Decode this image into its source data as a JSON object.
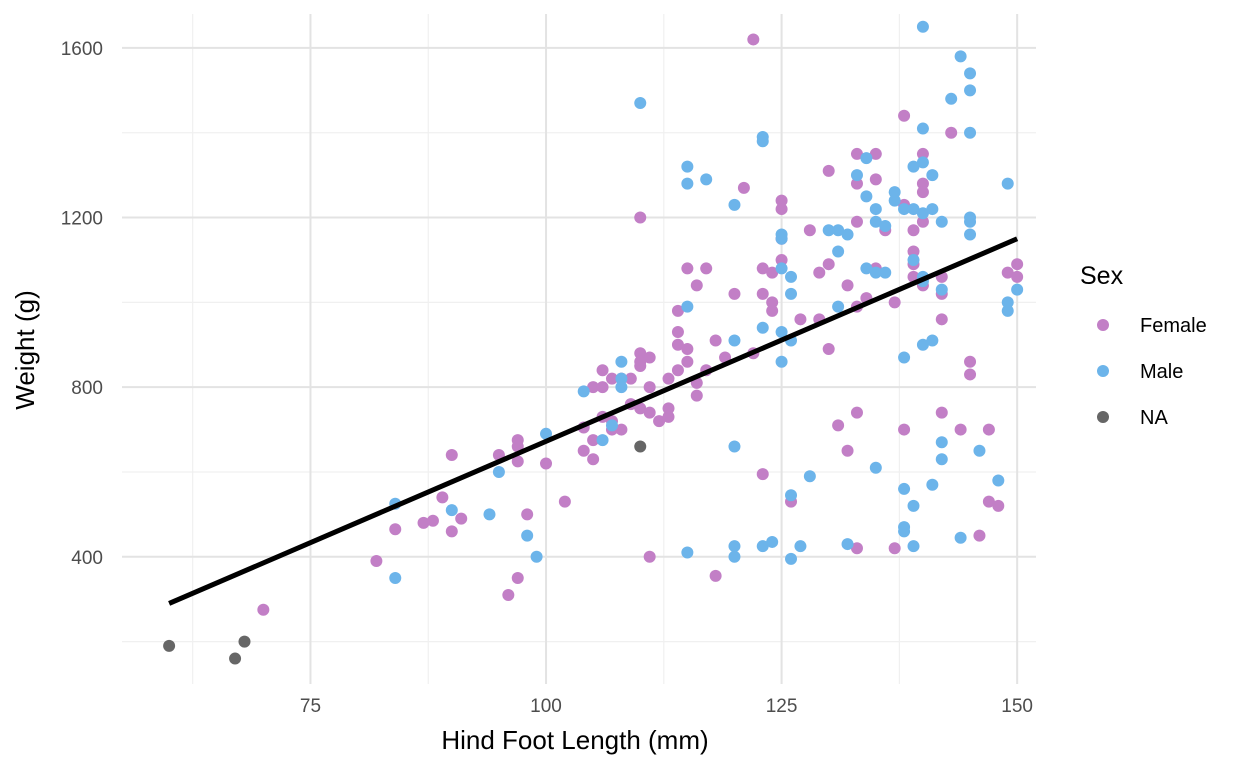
{
  "chart_data": {
    "type": "scatter",
    "title": "",
    "xlabel": "Hind Foot Length (mm)",
    "ylabel": "Weight (g)",
    "xlim": [
      55,
      152
    ],
    "ylim": [
      100,
      1680
    ],
    "x_ticks": [
      75,
      100,
      125,
      150
    ],
    "y_ticks": [
      400,
      800,
      1200,
      1600
    ],
    "x_tick_labels": [
      "75",
      "100",
      "125",
      "150"
    ],
    "y_tick_labels": [
      "400",
      "800",
      "1200",
      "1600"
    ],
    "grid": true,
    "legend": {
      "title": "Sex",
      "position": "right",
      "entries": [
        {
          "label": "Female",
          "color": "#c27fc6"
        },
        {
          "label": "Male",
          "color": "#6cb4ea"
        },
        {
          "label": "NA",
          "color": "#666666"
        }
      ]
    },
    "trend_line": {
      "x": [
        60,
        150
      ],
      "y": [
        290,
        1150
      ],
      "color": "#000000"
    },
    "series": [
      {
        "name": "Female",
        "color": "#c27fc6",
        "points": [
          [
            70,
            275
          ],
          [
            82,
            390
          ],
          [
            84,
            465
          ],
          [
            87,
            480
          ],
          [
            88,
            485
          ],
          [
            89,
            540
          ],
          [
            90,
            640
          ],
          [
            90,
            460
          ],
          [
            91,
            490
          ],
          [
            95,
            640
          ],
          [
            96,
            310
          ],
          [
            97,
            625
          ],
          [
            97,
            660
          ],
          [
            97,
            675
          ],
          [
            97,
            350
          ],
          [
            98,
            500
          ],
          [
            100,
            620
          ],
          [
            102,
            530
          ],
          [
            104,
            650
          ],
          [
            104,
            705
          ],
          [
            105,
            630
          ],
          [
            105,
            675
          ],
          [
            105,
            800
          ],
          [
            106,
            840
          ],
          [
            106,
            800
          ],
          [
            106,
            730
          ],
          [
            107,
            820
          ],
          [
            107,
            700
          ],
          [
            107,
            720
          ],
          [
            108,
            700
          ],
          [
            108,
            820
          ],
          [
            109,
            760
          ],
          [
            109,
            820
          ],
          [
            110,
            880
          ],
          [
            110,
            860
          ],
          [
            110,
            850
          ],
          [
            110,
            750
          ],
          [
            110,
            1200
          ],
          [
            111,
            870
          ],
          [
            111,
            800
          ],
          [
            111,
            740
          ],
          [
            111,
            400
          ],
          [
            112,
            720
          ],
          [
            113,
            730
          ],
          [
            113,
            820
          ],
          [
            113,
            750
          ],
          [
            114,
            980
          ],
          [
            114,
            900
          ],
          [
            114,
            840
          ],
          [
            114,
            930
          ],
          [
            115,
            890
          ],
          [
            115,
            860
          ],
          [
            115,
            1080
          ],
          [
            116,
            1040
          ],
          [
            116,
            780
          ],
          [
            116,
            810
          ],
          [
            117,
            1080
          ],
          [
            117,
            840
          ],
          [
            118,
            910
          ],
          [
            118,
            355
          ],
          [
            119,
            870
          ],
          [
            120,
            1020
          ],
          [
            121,
            1270
          ],
          [
            122,
            880
          ],
          [
            122,
            1620
          ],
          [
            123,
            1080
          ],
          [
            123,
            1020
          ],
          [
            123,
            595
          ],
          [
            124,
            1070
          ],
          [
            124,
            1000
          ],
          [
            124,
            980
          ],
          [
            125,
            1240
          ],
          [
            125,
            1220
          ],
          [
            125,
            1100
          ],
          [
            125,
            1150
          ],
          [
            126,
            530
          ],
          [
            127,
            960
          ],
          [
            128,
            1170
          ],
          [
            129,
            1070
          ],
          [
            129,
            960
          ],
          [
            130,
            1310
          ],
          [
            130,
            1090
          ],
          [
            130,
            890
          ],
          [
            131,
            710
          ],
          [
            132,
            650
          ],
          [
            132,
            1040
          ],
          [
            133,
            1190
          ],
          [
            133,
            1350
          ],
          [
            133,
            1280
          ],
          [
            133,
            990
          ],
          [
            133,
            740
          ],
          [
            133,
            420
          ],
          [
            134,
            1010
          ],
          [
            135,
            1350
          ],
          [
            135,
            1290
          ],
          [
            135,
            1080
          ],
          [
            136,
            1170
          ],
          [
            137,
            1000
          ],
          [
            137,
            420
          ],
          [
            138,
            1440
          ],
          [
            138,
            1230
          ],
          [
            138,
            700
          ],
          [
            139,
            1170
          ],
          [
            139,
            1120
          ],
          [
            139,
            1060
          ],
          [
            139,
            1090
          ],
          [
            140,
            1350
          ],
          [
            140,
            1280
          ],
          [
            140,
            1260
          ],
          [
            140,
            1190
          ],
          [
            140,
            1040
          ],
          [
            142,
            1060
          ],
          [
            142,
            1020
          ],
          [
            142,
            960
          ],
          [
            142,
            740
          ],
          [
            143,
            1400
          ],
          [
            144,
            700
          ],
          [
            145,
            860
          ],
          [
            145,
            830
          ],
          [
            146,
            450
          ],
          [
            147,
            700
          ],
          [
            147,
            530
          ],
          [
            148,
            520
          ],
          [
            149,
            1070
          ],
          [
            150,
            1090
          ],
          [
            150,
            1060
          ]
        ]
      },
      {
        "name": "Male",
        "color": "#6cb4ea",
        "points": [
          [
            84,
            525
          ],
          [
            84,
            350
          ],
          [
            90,
            510
          ],
          [
            94,
            500
          ],
          [
            95,
            600
          ],
          [
            98,
            450
          ],
          [
            99,
            400
          ],
          [
            100,
            690
          ],
          [
            104,
            790
          ],
          [
            106,
            675
          ],
          [
            107,
            710
          ],
          [
            108,
            860
          ],
          [
            108,
            820
          ],
          [
            108,
            800
          ],
          [
            110,
            1470
          ],
          [
            115,
            1320
          ],
          [
            115,
            1280
          ],
          [
            115,
            990
          ],
          [
            115,
            410
          ],
          [
            117,
            1290
          ],
          [
            120,
            1230
          ],
          [
            120,
            910
          ],
          [
            120,
            660
          ],
          [
            120,
            425
          ],
          [
            120,
            400
          ],
          [
            123,
            1390
          ],
          [
            123,
            1380
          ],
          [
            123,
            940
          ],
          [
            123,
            425
          ],
          [
            124,
            435
          ],
          [
            125,
            1160
          ],
          [
            125,
            1150
          ],
          [
            125,
            1080
          ],
          [
            125,
            930
          ],
          [
            125,
            860
          ],
          [
            126,
            1060
          ],
          [
            126,
            1020
          ],
          [
            126,
            910
          ],
          [
            126,
            545
          ],
          [
            126,
            395
          ],
          [
            127,
            425
          ],
          [
            128,
            590
          ],
          [
            130,
            1170
          ],
          [
            131,
            1170
          ],
          [
            131,
            1120
          ],
          [
            131,
            990
          ],
          [
            132,
            1160
          ],
          [
            132,
            430
          ],
          [
            133,
            1300
          ],
          [
            134,
            1340
          ],
          [
            134,
            1250
          ],
          [
            134,
            1080
          ],
          [
            135,
            1220
          ],
          [
            135,
            1190
          ],
          [
            135,
            1070
          ],
          [
            135,
            610
          ],
          [
            136,
            1180
          ],
          [
            136,
            1070
          ],
          [
            137,
            1260
          ],
          [
            137,
            1240
          ],
          [
            138,
            1220
          ],
          [
            138,
            870
          ],
          [
            138,
            560
          ],
          [
            138,
            470
          ],
          [
            138,
            460
          ],
          [
            139,
            1320
          ],
          [
            139,
            1220
          ],
          [
            139,
            1100
          ],
          [
            139,
            520
          ],
          [
            139,
            425
          ],
          [
            140,
            1650
          ],
          [
            140,
            1410
          ],
          [
            140,
            1330
          ],
          [
            140,
            1210
          ],
          [
            140,
            1060
          ],
          [
            140,
            1050
          ],
          [
            140,
            900
          ],
          [
            141,
            1300
          ],
          [
            141,
            1220
          ],
          [
            141,
            910
          ],
          [
            141,
            570
          ],
          [
            142,
            1190
          ],
          [
            142,
            1030
          ],
          [
            142,
            670
          ],
          [
            142,
            630
          ],
          [
            143,
            1480
          ],
          [
            144,
            1580
          ],
          [
            144,
            445
          ],
          [
            145,
            1540
          ],
          [
            145,
            1500
          ],
          [
            145,
            1400
          ],
          [
            145,
            1200
          ],
          [
            145,
            1190
          ],
          [
            145,
            1160
          ],
          [
            146,
            650
          ],
          [
            148,
            580
          ],
          [
            149,
            1280
          ],
          [
            149,
            1000
          ],
          [
            149,
            980
          ],
          [
            150,
            1030
          ]
        ]
      },
      {
        "name": "NA",
        "color": "#666666",
        "points": [
          [
            60,
            190
          ],
          [
            67,
            160
          ],
          [
            68,
            200
          ],
          [
            110,
            660
          ]
        ]
      }
    ]
  }
}
